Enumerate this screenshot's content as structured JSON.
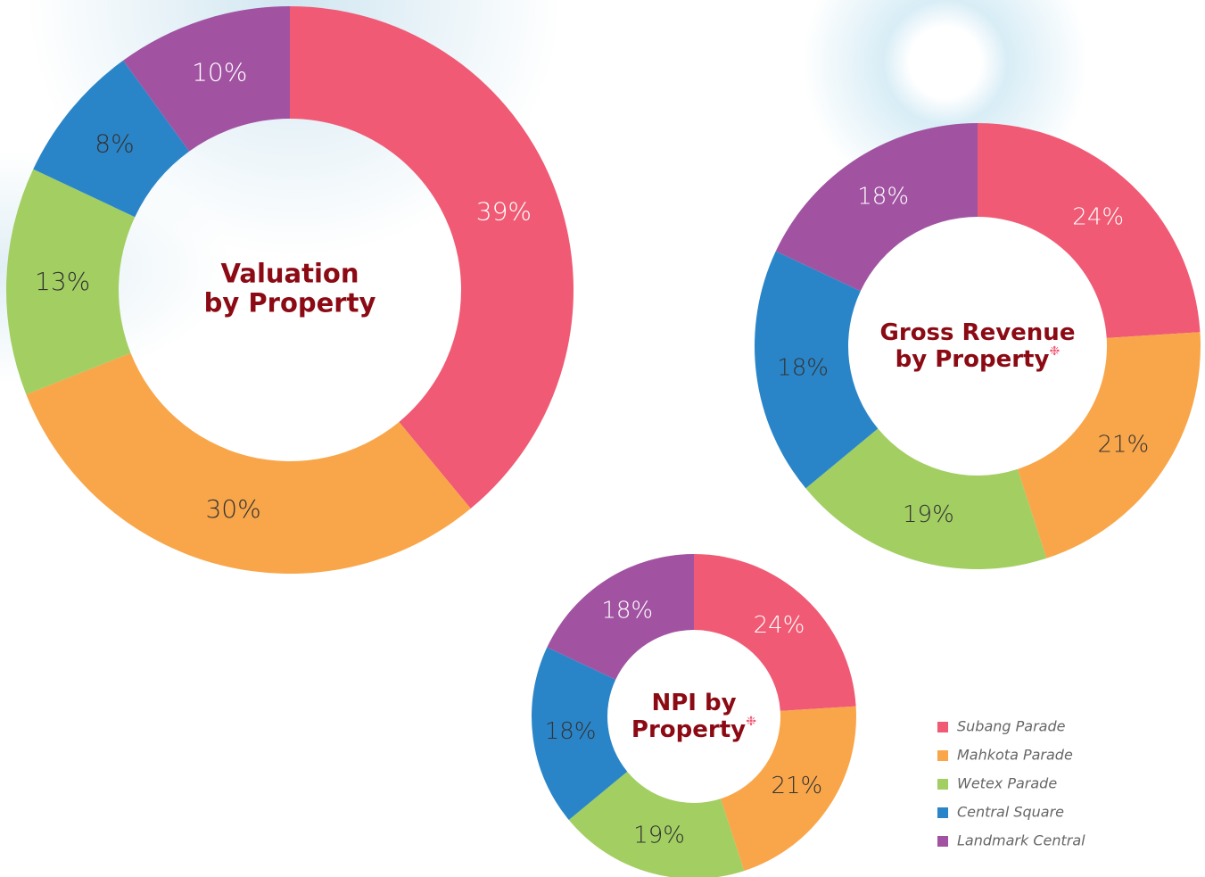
{
  "chart_data": [
    {
      "type": "pie",
      "donut": true,
      "title": [
        "Valuation",
        "by Property"
      ],
      "values": [
        39,
        30,
        13,
        8,
        10
      ],
      "value_labels": [
        "39%",
        "30%",
        "13%",
        "8%",
        "10%"
      ]
    },
    {
      "type": "pie",
      "donut": true,
      "title": [
        "Gross Revenue",
        "by Property"
      ],
      "title_mark": "❉",
      "values": [
        24,
        21,
        19,
        18,
        18
      ],
      "value_labels": [
        "24%",
        "21%",
        "19%",
        "18%",
        "18%"
      ]
    },
    {
      "type": "pie",
      "donut": true,
      "title": [
        "NPI by",
        "Property"
      ],
      "title_mark": "❉",
      "values": [
        24,
        21,
        19,
        18,
        18
      ],
      "value_labels": [
        "24%",
        "21%",
        "19%",
        "18%",
        "18%"
      ]
    }
  ],
  "legend": {
    "labels": [
      "Subang Parade",
      "Mahkota Parade",
      "Wetex Parade",
      "Central Square",
      "Landmark Central"
    ],
    "colors": [
      "#f05a74",
      "#f9a64a",
      "#a2ce62",
      "#2a85c8",
      "#a153a2"
    ],
    "label_colors": [
      "#ffffff",
      "#333333",
      "#333333",
      "#333333",
      "#ffffff"
    ]
  }
}
